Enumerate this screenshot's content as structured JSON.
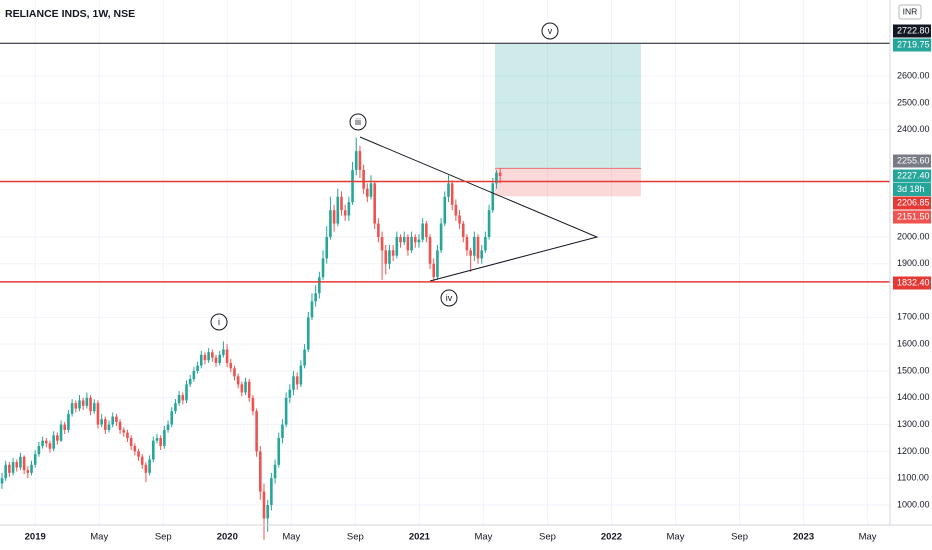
{
  "chart_data": {
    "type": "candlestick",
    "title": "RELIANCE INDS, 1W, NSE",
    "currency": "INR",
    "up_color": "#26a69a",
    "down_color": "#ef5350",
    "ylim": [
      944,
      2884
    ],
    "yticks": [
      {
        "value": 1000,
        "label": "1000.00"
      },
      {
        "value": 1100,
        "label": "1100.00"
      },
      {
        "value": 1200,
        "label": "1200.00"
      },
      {
        "value": 1300,
        "label": "1300.00"
      },
      {
        "value": 1400,
        "label": "1400.00"
      },
      {
        "value": 1500,
        "label": "1500.00"
      },
      {
        "value": 1600,
        "label": "1600.00"
      },
      {
        "value": 1700,
        "label": "1700.00"
      },
      {
        "value": 1900,
        "label": "1900.00"
      },
      {
        "value": 2000,
        "label": "2000.00"
      },
      {
        "value": 2400,
        "label": "2400.00"
      },
      {
        "value": 2500,
        "label": "2500.00"
      },
      {
        "value": 2600,
        "label": "2600.00"
      }
    ],
    "xlim": [
      -2.2,
      53.4
    ],
    "xticks": [
      {
        "value": 0,
        "label": "2019"
      },
      {
        "value": 4,
        "label": "May"
      },
      {
        "value": 8,
        "label": "Sep"
      },
      {
        "value": 12,
        "label": "2020"
      },
      {
        "value": 16,
        "label": "May"
      },
      {
        "value": 20,
        "label": "Sep"
      },
      {
        "value": 24,
        "label": "2021"
      },
      {
        "value": 28,
        "label": "May"
      },
      {
        "value": 32,
        "label": "Sep"
      },
      {
        "value": 36,
        "label": "2022"
      },
      {
        "value": 40,
        "label": "May"
      },
      {
        "value": 44,
        "label": "Sep"
      },
      {
        "value": 48,
        "label": "2023"
      },
      {
        "value": 52,
        "label": "May"
      }
    ],
    "candles": [
      [
        1080,
        1120,
        1060,
        1100
      ],
      [
        1100,
        1165,
        1090,
        1150
      ],
      [
        1150,
        1160,
        1105,
        1120
      ],
      [
        1120,
        1175,
        1110,
        1160
      ],
      [
        1160,
        1170,
        1125,
        1140
      ],
      [
        1140,
        1195,
        1130,
        1180
      ],
      [
        1180,
        1185,
        1115,
        1130
      ],
      [
        1130,
        1145,
        1100,
        1120
      ],
      [
        1120,
        1165,
        1110,
        1150
      ],
      [
        1150,
        1205,
        1140,
        1190
      ],
      [
        1190,
        1235,
        1180,
        1220
      ],
      [
        1220,
        1255,
        1210,
        1240
      ],
      [
        1240,
        1250,
        1215,
        1230
      ],
      [
        1230,
        1240,
        1195,
        1210
      ],
      [
        1210,
        1275,
        1200,
        1260
      ],
      [
        1260,
        1270,
        1225,
        1240
      ],
      [
        1240,
        1315,
        1235,
        1300
      ],
      [
        1300,
        1310,
        1265,
        1280
      ],
      [
        1280,
        1355,
        1270,
        1340
      ],
      [
        1340,
        1395,
        1330,
        1380
      ],
      [
        1380,
        1390,
        1345,
        1360
      ],
      [
        1360,
        1410,
        1350,
        1390
      ],
      [
        1390,
        1400,
        1355,
        1370
      ],
      [
        1370,
        1420,
        1360,
        1400
      ],
      [
        1400,
        1410,
        1335,
        1350
      ],
      [
        1350,
        1395,
        1340,
        1380
      ],
      [
        1380,
        1390,
        1285,
        1300
      ],
      [
        1300,
        1340,
        1290,
        1320
      ],
      [
        1320,
        1330,
        1265,
        1280
      ],
      [
        1280,
        1315,
        1270,
        1300
      ],
      [
        1300,
        1345,
        1290,
        1330
      ],
      [
        1330,
        1340,
        1295,
        1310
      ],
      [
        1310,
        1320,
        1265,
        1280
      ],
      [
        1280,
        1290,
        1255,
        1270
      ],
      [
        1270,
        1280,
        1235,
        1250
      ],
      [
        1250,
        1260,
        1205,
        1220
      ],
      [
        1220,
        1230,
        1185,
        1200
      ],
      [
        1200,
        1210,
        1165,
        1180
      ],
      [
        1180,
        1190,
        1135,
        1150
      ],
      [
        1150,
        1160,
        1085,
        1120
      ],
      [
        1120,
        1185,
        1110,
        1170
      ],
      [
        1170,
        1255,
        1160,
        1240
      ],
      [
        1240,
        1265,
        1230,
        1250
      ],
      [
        1250,
        1260,
        1205,
        1220
      ],
      [
        1220,
        1295,
        1210,
        1280
      ],
      [
        1280,
        1315,
        1270,
        1300
      ],
      [
        1300,
        1365,
        1290,
        1350
      ],
      [
        1350,
        1395,
        1340,
        1380
      ],
      [
        1380,
        1425,
        1370,
        1410
      ],
      [
        1410,
        1420,
        1375,
        1390
      ],
      [
        1390,
        1465,
        1380,
        1450
      ],
      [
        1450,
        1485,
        1440,
        1470
      ],
      [
        1470,
        1515,
        1460,
        1500
      ],
      [
        1500,
        1535,
        1490,
        1520
      ],
      [
        1520,
        1575,
        1510,
        1560
      ],
      [
        1560,
        1570,
        1525,
        1540
      ],
      [
        1540,
        1585,
        1530,
        1570
      ],
      [
        1570,
        1580,
        1535,
        1550
      ],
      [
        1550,
        1560,
        1515,
        1530
      ],
      [
        1530,
        1575,
        1520,
        1560
      ],
      [
        1560,
        1610,
        1550,
        1580
      ],
      [
        1580,
        1600,
        1515,
        1530
      ],
      [
        1530,
        1545,
        1495,
        1510
      ],
      [
        1510,
        1520,
        1465,
        1480
      ],
      [
        1480,
        1490,
        1435,
        1450
      ],
      [
        1450,
        1460,
        1405,
        1420
      ],
      [
        1420,
        1475,
        1410,
        1460
      ],
      [
        1460,
        1470,
        1385,
        1400
      ],
      [
        1400,
        1410,
        1335,
        1350
      ],
      [
        1350,
        1360,
        1180,
        1200
      ],
      [
        1200,
        1220,
        1020,
        1050
      ],
      [
        1050,
        1080,
        870,
        950
      ],
      [
        950,
        1020,
        900,
        1000
      ],
      [
        1000,
        1120,
        980,
        1100
      ],
      [
        1100,
        1170,
        1080,
        1150
      ],
      [
        1150,
        1270,
        1140,
        1250
      ],
      [
        1250,
        1320,
        1230,
        1300
      ],
      [
        1300,
        1420,
        1290,
        1400
      ],
      [
        1400,
        1450,
        1380,
        1430
      ],
      [
        1430,
        1500,
        1410,
        1480
      ],
      [
        1480,
        1495,
        1430,
        1450
      ],
      [
        1450,
        1540,
        1440,
        1520
      ],
      [
        1520,
        1600,
        1510,
        1580
      ],
      [
        1580,
        1720,
        1570,
        1700
      ],
      [
        1700,
        1790,
        1690,
        1760
      ],
      [
        1760,
        1820,
        1740,
        1790
      ],
      [
        1790,
        1870,
        1770,
        1850
      ],
      [
        1850,
        1950,
        1840,
        1920
      ],
      [
        1920,
        2040,
        1900,
        2000
      ],
      [
        2000,
        2150,
        1990,
        2100
      ],
      [
        2100,
        2120,
        2020,
        2050
      ],
      [
        2050,
        2180,
        2040,
        2150
      ],
      [
        2150,
        2170,
        2080,
        2100
      ],
      [
        2100,
        2120,
        2060,
        2080
      ],
      [
        2080,
        2150,
        2060,
        2130
      ],
      [
        2130,
        2280,
        2120,
        2250
      ],
      [
        2250,
        2370,
        2230,
        2320
      ],
      [
        2320,
        2340,
        2220,
        2250
      ],
      [
        2250,
        2270,
        2160,
        2180
      ],
      [
        2180,
        2200,
        2130,
        2150
      ],
      [
        2150,
        2230,
        2140,
        2200
      ],
      [
        2200,
        2210,
        2030,
        2050
      ],
      [
        2050,
        2070,
        1980,
        2000
      ],
      [
        2000,
        2020,
        1840,
        1950
      ],
      [
        1950,
        1970,
        1860,
        1900
      ],
      [
        1900,
        1970,
        1880,
        1950
      ],
      [
        1950,
        1970,
        1910,
        1930
      ],
      [
        1930,
        2020,
        1920,
        2000
      ],
      [
        2000,
        2010,
        1960,
        1980
      ],
      [
        1980,
        2020,
        1970,
        2000
      ],
      [
        2000,
        2010,
        1930,
        1950
      ],
      [
        1950,
        2020,
        1940,
        2000
      ],
      [
        2000,
        2010,
        1960,
        1980
      ],
      [
        1980,
        2010,
        1960,
        1990
      ],
      [
        1990,
        2070,
        1980,
        2050
      ],
      [
        2050,
        2060,
        1980,
        2000
      ],
      [
        2000,
        2010,
        1880,
        1900
      ],
      [
        1900,
        1920,
        1830,
        1850
      ],
      [
        1850,
        1970,
        1840,
        1950
      ],
      [
        1950,
        2070,
        1940,
        2050
      ],
      [
        2050,
        2170,
        2040,
        2150
      ],
      [
        2150,
        2230,
        2130,
        2200
      ],
      [
        2200,
        2210,
        2100,
        2120
      ],
      [
        2120,
        2140,
        2060,
        2080
      ],
      [
        2080,
        2100,
        2030,
        2050
      ],
      [
        2050,
        2060,
        1980,
        2000
      ],
      [
        2000,
        2010,
        1930,
        1950
      ],
      [
        1950,
        1960,
        1870,
        1930
      ],
      [
        1930,
        2020,
        1910,
        2000
      ],
      [
        2000,
        2010,
        1900,
        1920
      ],
      [
        1920,
        1970,
        1900,
        1950
      ],
      [
        1950,
        2020,
        1940,
        2000
      ],
      [
        2000,
        2120,
        1990,
        2100
      ],
      [
        2100,
        2220,
        2090,
        2200
      ],
      [
        2200,
        2250,
        2180,
        2240
      ],
      [
        2240,
        2256,
        2200,
        2227.4
      ]
    ],
    "levels": [
      {
        "value": 2722.8,
        "label": "2722.80",
        "color": "#131722"
      },
      {
        "value": 2206.85,
        "label": "2206.85",
        "color": "#e53935"
      },
      {
        "value": 1832.4,
        "label": "1832.40",
        "color": "#e53935"
      }
    ],
    "position": {
      "target": {
        "value": 2719.75,
        "label": "2719.75"
      },
      "entry": {
        "value": 2255.6,
        "label": "2255.60"
      },
      "stop": {
        "value": 2151.5,
        "label": "2151.50"
      }
    },
    "last_price": {
      "value": 2227.4,
      "label": "2227.40",
      "countdown": "3d 18h"
    },
    "waves": [
      "i",
      "iii",
      "iv",
      "v"
    ]
  }
}
